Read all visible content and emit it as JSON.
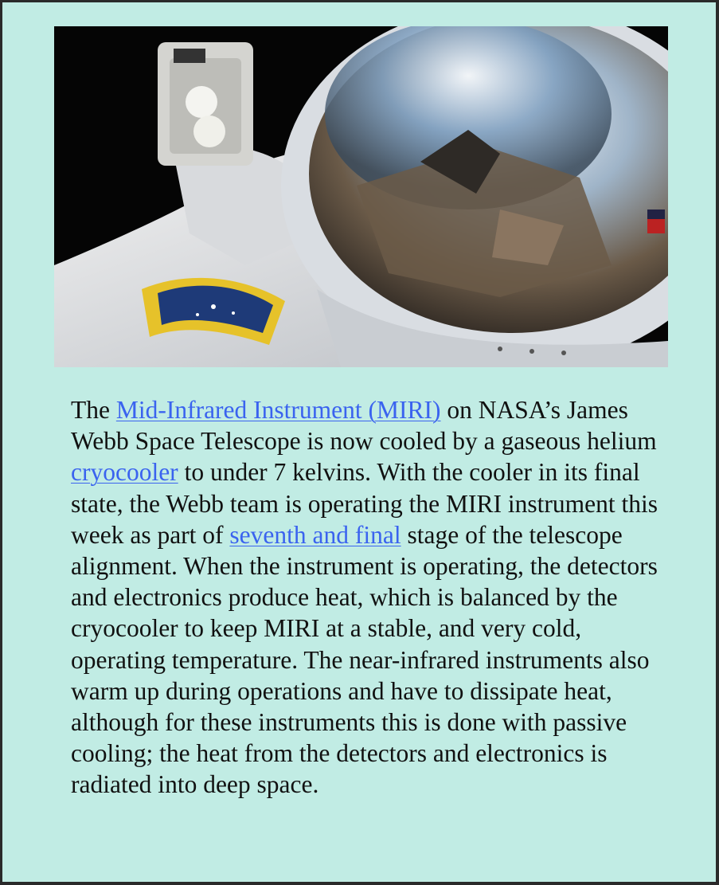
{
  "article": {
    "segments": [
      {
        "text": "The ",
        "link": false
      },
      {
        "text": "Mid-Infrared Instrument (MIRI)",
        "link": true
      },
      {
        "text": " on NASA’s James Webb Space Telescope is now cooled by a gaseous helium ",
        "link": false
      },
      {
        "text": "cryocooler",
        "link": true
      },
      {
        "text": " to under 7 kelvins. With the cooler in its final state, the Webb team is operating the MIRI instrument this week as part of ",
        "link": false
      },
      {
        "text": "seventh and final",
        "link": true
      },
      {
        "text": " stage of the telescope alignment. When the instrument is operating, the detectors and electronics produce heat, which is balanced by the cryocooler to keep MIRI at a stable, and very cold, operating temperature. The near-infrared instruments also warm up during operations and have to dissipate heat, although for these instruments this is done with passive cooling; the heat from the detectors and electronics is radiated into deep space.",
        "link": false
      }
    ]
  },
  "colors": {
    "background": "#c1ece4",
    "link": "#3a63ef",
    "frame": "#2a2a2a"
  },
  "image": {
    "icon": "astronaut-helmet-photo"
  }
}
